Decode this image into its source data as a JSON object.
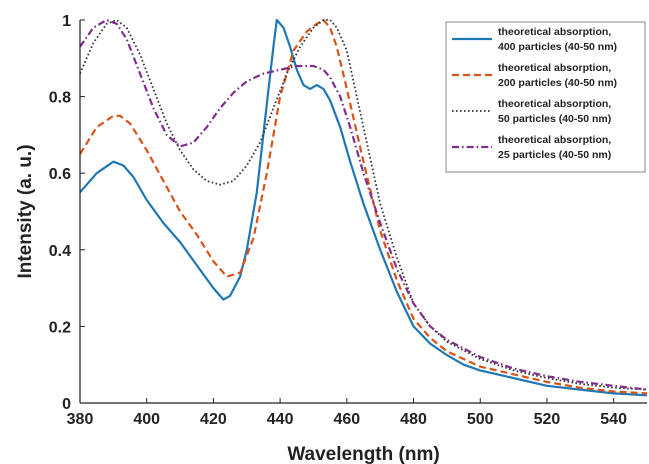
{
  "chart_data": {
    "type": "line",
    "xlabel": "Wavelength (nm)",
    "ylabel": "Intensity (a. u.)",
    "xlim": [
      380,
      550
    ],
    "ylim": [
      0,
      1
    ],
    "xticks": [
      380,
      400,
      420,
      440,
      460,
      480,
      500,
      520,
      540
    ],
    "yticks": [
      0,
      0.2,
      0.4,
      0.6,
      0.8,
      1
    ],
    "legend_position": "top-right",
    "grid": false,
    "series": [
      {
        "name": "theoretical absorption, 400 particles (40-50 nm)",
        "legend_lines": [
          "theoretical absorption,",
          "400 particles (40-50 nm)"
        ],
        "color": "#1f77b4",
        "dash": "solid",
        "x": [
          380,
          385,
          390,
          393,
          396,
          400,
          405,
          410,
          415,
          420,
          423,
          425,
          428,
          430,
          433,
          436,
          438,
          439,
          441,
          443,
          445,
          447,
          449,
          451,
          453,
          455,
          458,
          461,
          465,
          470,
          475,
          480,
          485,
          490,
          495,
          500,
          510,
          520,
          530,
          540,
          550
        ],
        "y": [
          0.55,
          0.6,
          0.63,
          0.62,
          0.59,
          0.53,
          0.47,
          0.42,
          0.36,
          0.3,
          0.27,
          0.28,
          0.33,
          0.4,
          0.55,
          0.78,
          0.93,
          1.0,
          0.98,
          0.93,
          0.87,
          0.83,
          0.82,
          0.83,
          0.82,
          0.79,
          0.72,
          0.63,
          0.52,
          0.4,
          0.29,
          0.2,
          0.155,
          0.125,
          0.1,
          0.085,
          0.065,
          0.045,
          0.035,
          0.025,
          0.02
        ]
      },
      {
        "name": "theoretical absorption, 200 particles (40-50 nm)",
        "legend_lines": [
          "theoretical absorption,",
          "200 particles (40-50 nm)"
        ],
        "color": "#d95319",
        "dash": "dashed",
        "x": [
          380,
          385,
          390,
          392,
          395,
          400,
          405,
          410,
          415,
          420,
          424,
          428,
          432,
          436,
          440,
          444,
          448,
          451,
          453,
          455,
          457,
          460,
          465,
          470,
          475,
          480,
          485,
          490,
          495,
          500,
          510,
          520,
          530,
          540,
          550
        ],
        "y": [
          0.65,
          0.72,
          0.75,
          0.75,
          0.73,
          0.66,
          0.58,
          0.5,
          0.44,
          0.37,
          0.33,
          0.34,
          0.43,
          0.6,
          0.8,
          0.92,
          0.97,
          0.99,
          1.0,
          0.98,
          0.93,
          0.82,
          0.63,
          0.45,
          0.32,
          0.22,
          0.17,
          0.135,
          0.115,
          0.095,
          0.075,
          0.055,
          0.04,
          0.03,
          0.025
        ]
      },
      {
        "name": "theoretical absorption, 50 particles (40-50 nm)",
        "legend_lines": [
          "theoretical absorption,",
          "50 particles (40-50 nm)"
        ],
        "color": "#333333",
        "dash": "dotted",
        "x": [
          380,
          384,
          388,
          391,
          394,
          398,
          402,
          406,
          410,
          414,
          418,
          422,
          426,
          430,
          434,
          438,
          442,
          446,
          450,
          453,
          455,
          457,
          460,
          463,
          466,
          470,
          475,
          480,
          485,
          490,
          500,
          510,
          520,
          530,
          540,
          550
        ],
        "y": [
          0.86,
          0.94,
          0.99,
          1.0,
          0.98,
          0.91,
          0.82,
          0.73,
          0.66,
          0.61,
          0.58,
          0.57,
          0.58,
          0.62,
          0.68,
          0.77,
          0.86,
          0.93,
          0.98,
          1.0,
          1.0,
          0.98,
          0.92,
          0.8,
          0.68,
          0.52,
          0.38,
          0.26,
          0.2,
          0.16,
          0.115,
          0.085,
          0.065,
          0.05,
          0.04,
          0.035
        ]
      },
      {
        "name": "theoretical absorption, 25 particles (40-50 nm)",
        "legend_lines": [
          "theoretical absorption,",
          "25 particles (40-50 nm)"
        ],
        "color": "#7e2f8e",
        "dash": "dashdot",
        "x": [
          380,
          384,
          388,
          391,
          394,
          398,
          402,
          406,
          410,
          414,
          418,
          422,
          426,
          430,
          435,
          440,
          445,
          450,
          453,
          455,
          458,
          461,
          465,
          470,
          475,
          480,
          485,
          490,
          500,
          510,
          520,
          530,
          540,
          550
        ],
        "y": [
          0.93,
          0.98,
          1.0,
          0.99,
          0.95,
          0.86,
          0.77,
          0.7,
          0.67,
          0.68,
          0.72,
          0.77,
          0.81,
          0.84,
          0.86,
          0.87,
          0.88,
          0.88,
          0.87,
          0.85,
          0.8,
          0.72,
          0.6,
          0.47,
          0.35,
          0.26,
          0.2,
          0.165,
          0.12,
          0.09,
          0.07,
          0.055,
          0.045,
          0.035
        ]
      }
    ]
  }
}
